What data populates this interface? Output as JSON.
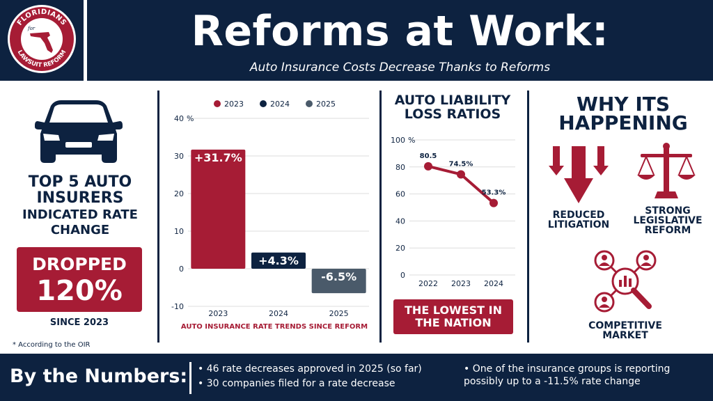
{
  "header": {
    "title": "Reforms at Work:",
    "subtitle": "Auto Insurance Costs Decrease Thanks to Reforms",
    "logo": {
      "line1": "FLORIDIANS",
      "line2": "for",
      "line3": "LAWSUIT REFORM"
    }
  },
  "left_panel": {
    "icon": "car-icon",
    "title": "TOP 5 AUTO INSURERS",
    "subtitle": "INDICATED RATE CHANGE",
    "dropped_label": "DROPPED",
    "dropped_value": "120%",
    "since": "SINCE 2023",
    "footnote": "* According to the OIR"
  },
  "chart_data": [
    {
      "type": "bar",
      "title": "AUTO INSURANCE RATE TRENDS SINCE REFORM",
      "categories": [
        "2023",
        "2024",
        "2025"
      ],
      "series": [
        {
          "name": "2023",
          "values": [
            31.7,
            null,
            null
          ]
        },
        {
          "name": "2024",
          "values": [
            null,
            4.3,
            null
          ]
        },
        {
          "name": "2025",
          "values": [
            null,
            null,
            -6.5
          ]
        }
      ],
      "values": [
        31.7,
        4.3,
        -6.5
      ],
      "data_labels": [
        "+31.7%",
        "+4.3%",
        "-6.5%"
      ],
      "ylim": [
        -10,
        40
      ],
      "yticks": [
        "40",
        "30",
        "20",
        "10",
        "0",
        "-10"
      ],
      "yunit": "%",
      "legend_position": "top",
      "colors": [
        "#a61c35",
        "#0d2240",
        "#4a5a6a"
      ],
      "grid": true
    },
    {
      "type": "line",
      "title": "AUTO LIABILITY LOSS RATIOS",
      "x": [
        "2022",
        "2023",
        "2024"
      ],
      "series": [
        {
          "name": "",
          "values": [
            80.5,
            74.5,
            53.3
          ]
        }
      ],
      "data_labels": [
        "80.5",
        "74.5%",
        "53.3%"
      ],
      "ylim": [
        0,
        100
      ],
      "yticks": [
        "100",
        "80",
        "60",
        "40",
        "20",
        "0"
      ],
      "yunit": "%",
      "color": "#a61c35",
      "grid": true
    }
  ],
  "loss_ratio_badge": "THE LOWEST IN THE NATION",
  "why": {
    "title": "WHY ITS HAPPENING",
    "items": [
      {
        "label": "REDUCED LITIGATION",
        "icon": "down-arrows-icon"
      },
      {
        "label": "STRONG LEGISLATIVE REFORM",
        "icon": "scales-icon"
      },
      {
        "label": "COMPETITIVE MARKET",
        "icon": "market-analysis-icon"
      }
    ]
  },
  "footer": {
    "title": "By the Numbers:",
    "items": [
      "• 46 rate decreases approved in 2025 (so far)",
      "• 30 companies filed for a rate decrease",
      "• One of the insurance groups is reporting possibly up to a -11.5% rate change"
    ]
  },
  "colors": {
    "navy": "#0d2240",
    "crimson": "#a61c35",
    "slate": "#4a5a6a",
    "grid": "#dddddd"
  }
}
